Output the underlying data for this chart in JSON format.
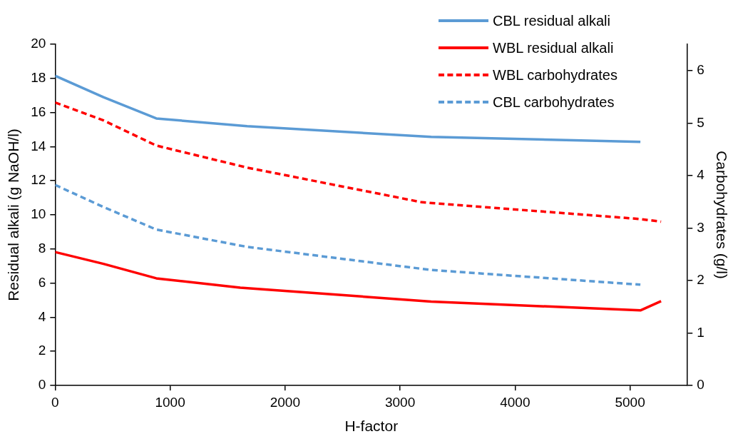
{
  "chart_data": {
    "type": "line",
    "xlabel": "H-factor",
    "ylabel": "Residual alkali (g NaOH/l)",
    "y2label": "Carbohydrates (g/l)",
    "xlim": [
      0,
      5500
    ],
    "xticks": [
      0,
      1000,
      2000,
      3000,
      4000,
      5000
    ],
    "ylim": [
      0,
      20
    ],
    "yticks": [
      0,
      2,
      4,
      6,
      8,
      10,
      12,
      14,
      16,
      18,
      20
    ],
    "y2lim": [
      0,
      6.5
    ],
    "y2ticks": [
      0,
      1,
      2,
      3,
      4,
      5,
      6
    ],
    "grid": false,
    "legend": "top right",
    "marker": "none",
    "series": [
      {
        "name": "CBL residual alkali",
        "color": "#5b9bd5",
        "line_style": "solid",
        "x": [
          0,
          420,
          880,
          1670,
          3270,
          5090
        ],
        "values": [
          18.15,
          16.9,
          15.65,
          15.2,
          14.57,
          14.28
        ]
      },
      {
        "name": "WBL residual alkali",
        "color": "#ff0000",
        "line_style": "solid",
        "x": [
          0,
          420,
          880,
          1610,
          3270,
          5090,
          5270
        ],
        "values": [
          7.82,
          7.13,
          6.28,
          5.73,
          4.92,
          4.4,
          4.94
        ]
      },
      {
        "name": "WBL carbohydrates",
        "color": "#ff0000",
        "line_style": "dashed",
        "axis": "y2",
        "x": [
          0,
          420,
          880,
          1670,
          3190,
          5090,
          5270
        ],
        "values": [
          5.39,
          5.05,
          4.57,
          4.15,
          3.49,
          3.17,
          3.12
        ]
      },
      {
        "name": "CBL carbohydrates",
        "color": "#5b9bd5",
        "line_style": "dashed",
        "axis": "y2",
        "x": [
          0,
          420,
          880,
          1670,
          3270,
          5090
        ],
        "values": [
          3.82,
          3.4,
          2.97,
          2.64,
          2.2,
          1.92
        ]
      }
    ]
  }
}
